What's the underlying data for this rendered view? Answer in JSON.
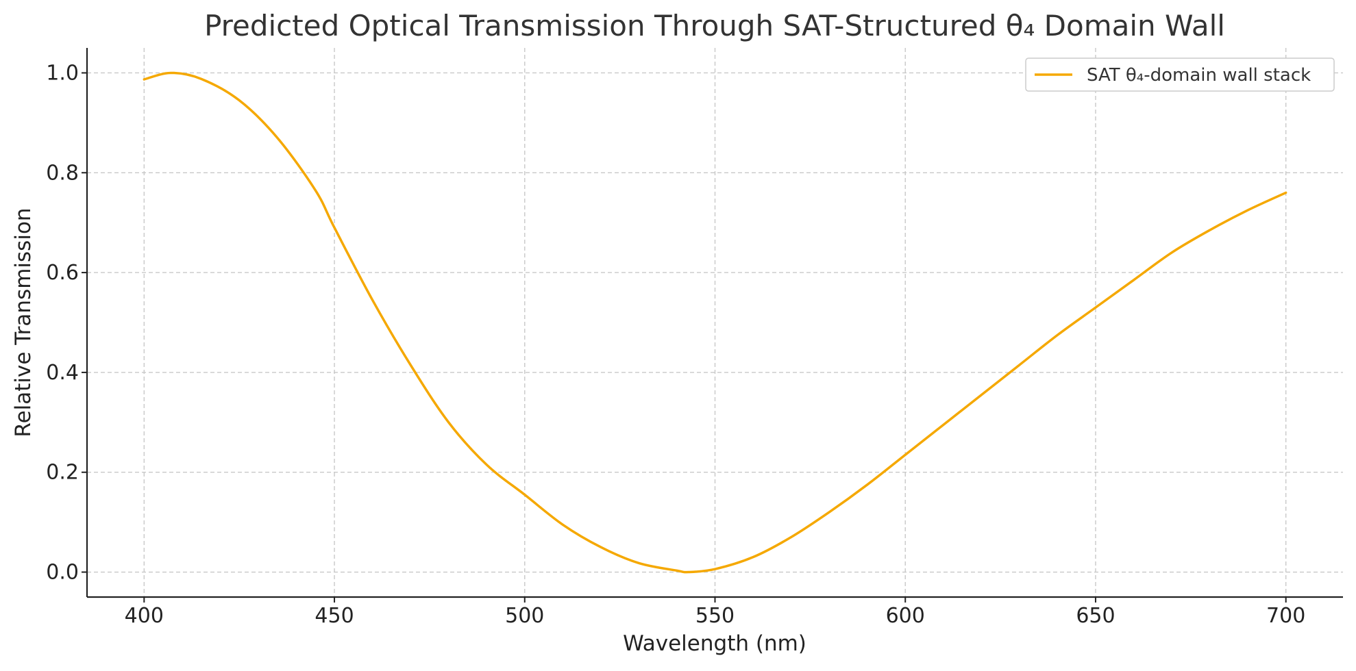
{
  "chart_data": {
    "type": "line",
    "title": "Predicted Optical Transmission Through SAT-Structured θ₄ Domain Wall",
    "xlabel": "Wavelength (nm)",
    "ylabel": "Relative Transmission",
    "xlim": [
      385,
      715
    ],
    "ylim": [
      -0.05,
      1.05
    ],
    "xticks": [
      400,
      450,
      500,
      550,
      600,
      650,
      700
    ],
    "xtick_labels": [
      "400",
      "450",
      "500",
      "550",
      "600",
      "650",
      "700"
    ],
    "yticks": [
      0.0,
      0.2,
      0.4,
      0.6,
      0.8,
      1.0
    ],
    "ytick_labels": [
      "0.0",
      "0.2",
      "0.4",
      "0.6",
      "0.8",
      "1.0"
    ],
    "grid": true,
    "legend_position": "top-right",
    "series": [
      {
        "name": "SAT θ₄-domain wall stack",
        "color": "#F5A800",
        "x": [
          400,
          407,
          415,
          425,
          435,
          445,
          450,
          460,
          470,
          480,
          490,
          500,
          510,
          520,
          530,
          540,
          543,
          550,
          560,
          570,
          580,
          590,
          600,
          610,
          620,
          630,
          640,
          650,
          660,
          670,
          680,
          690,
          700
        ],
        "y": [
          0.987,
          1.0,
          0.988,
          0.945,
          0.87,
          0.765,
          0.69,
          0.545,
          0.415,
          0.3,
          0.215,
          0.155,
          0.095,
          0.05,
          0.018,
          0.003,
          0.0,
          0.006,
          0.03,
          0.07,
          0.12,
          0.175,
          0.235,
          0.295,
          0.355,
          0.415,
          0.475,
          0.53,
          0.585,
          0.64,
          0.685,
          0.725,
          0.76
        ]
      }
    ]
  }
}
